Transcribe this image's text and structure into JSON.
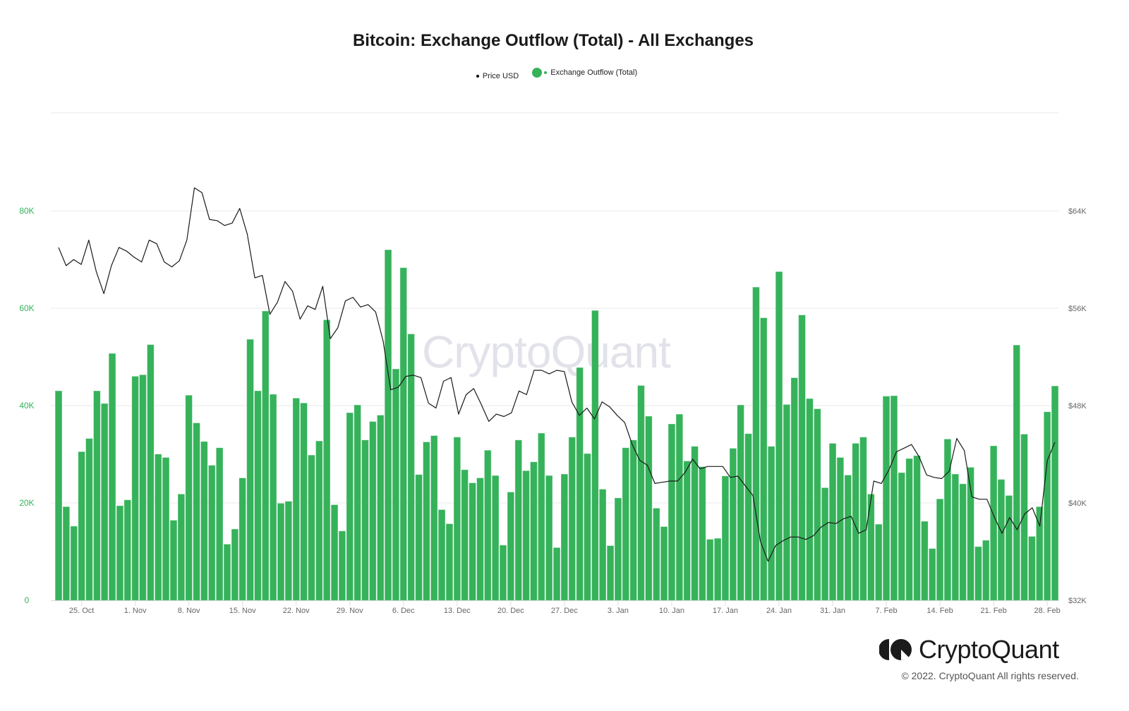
{
  "title": "Bitcoin: Exchange Outflow (Total) - All Exchanges",
  "legend": [
    {
      "label": "Price USD",
      "color": "#000000"
    },
    {
      "label": "Exchange Outflow (Total)",
      "color": "#36b25a"
    }
  ],
  "watermark": "CryptoQuant",
  "brand": {
    "name": "CryptoQuant",
    "copyright": "© 2022. CryptoQuant All rights reserved."
  },
  "colors": {
    "bar": "#36b25a",
    "line": "#1a1a1a",
    "grid": "#e8e8e8",
    "left_axis": "#36b25a",
    "right_axis": "#666666",
    "x_axis": "#666666"
  },
  "chart_data": {
    "type": "bar",
    "title": "Bitcoin: Exchange Outflow (Total) - All Exchanges",
    "xlabel": "",
    "ylabel_left": "Exchange Outflow (Total)",
    "ylabel_right": "Price USD",
    "ylim_left": [
      0,
      80000
    ],
    "ylim_right": [
      32000,
      64000
    ],
    "left_ticks": [
      "0",
      "20K",
      "40K",
      "60K",
      "80K"
    ],
    "right_ticks": [
      "$32K",
      "$40K",
      "$48K",
      "$56K",
      "$64K"
    ],
    "x_tick_labels": [
      "25. Oct",
      "1. Nov",
      "8. Nov",
      "15. Nov",
      "22. Nov",
      "29. Nov",
      "6. Dec",
      "13. Dec",
      "20. Dec",
      "27. Dec",
      "3. Jan",
      "10. Jan",
      "17. Jan",
      "24. Jan",
      "31. Jan",
      "7. Feb",
      "14. Feb",
      "21. Feb",
      "28. Feb"
    ],
    "grid": true,
    "legend_position": "top",
    "start_date": "22. Oct",
    "end_date": "1. Mar",
    "series": [
      {
        "name": "Exchange Outflow (Total)",
        "type": "bar",
        "axis": "left",
        "values": [
          43000,
          19200,
          15200,
          30500,
          33200,
          43000,
          40400,
          50700,
          19400,
          20600,
          46000,
          46300,
          52500,
          30000,
          29300,
          16400,
          21800,
          42100,
          36400,
          32600,
          27700,
          31300,
          11500,
          14600,
          25100,
          53600,
          43000,
          59400,
          42300,
          19900,
          20300,
          41500,
          40500,
          29800,
          32700,
          57600,
          19600,
          14200,
          38500,
          40100,
          32900,
          36700,
          38000,
          72000,
          47500,
          68300,
          54700,
          25800,
          32500,
          33800,
          18600,
          15700,
          33500,
          26800,
          24100,
          25100,
          30800,
          25600,
          11300,
          22200,
          32900,
          26600,
          28400,
          34300,
          25600,
          10800,
          25900,
          33500,
          47800,
          30100,
          59500,
          22800,
          11200,
          21000,
          31300,
          32900,
          44100,
          37800,
          18900,
          15100,
          36200,
          38200,
          28600,
          31600,
          27400,
          12500,
          12700,
          25500,
          31200,
          40100,
          34200,
          64300,
          58000,
          31600,
          67500,
          40200,
          45700,
          58600,
          41400,
          39300,
          23100,
          32200,
          29300,
          25700,
          32200,
          33500,
          21800,
          15600,
          41900,
          42000,
          26200,
          29100,
          29700,
          16200,
          10600,
          20800,
          33100,
          25900,
          23900,
          27300,
          11000,
          12300,
          31700,
          24800,
          21500,
          52400,
          34100,
          13100,
          19200,
          38700,
          44000
        ]
      },
      {
        "name": "Price USD",
        "type": "line",
        "axis": "right",
        "values": [
          61000,
          59500,
          60000,
          59600,
          61600,
          59000,
          57200,
          59500,
          61000,
          60700,
          60200,
          59800,
          61600,
          61300,
          59800,
          59400,
          59900,
          61600,
          65900,
          65500,
          63300,
          63200,
          62800,
          63000,
          64200,
          62100,
          58500,
          58700,
          55500,
          56500,
          58200,
          57400,
          55100,
          56200,
          55900,
          57800,
          53500,
          54400,
          56600,
          56900,
          56100,
          56300,
          55700,
          53300,
          49300,
          49500,
          50400,
          50500,
          50300,
          48200,
          47800,
          50000,
          50300,
          47300,
          48900,
          49400,
          48100,
          46700,
          47300,
          47100,
          47400,
          49200,
          48900,
          50900,
          50900,
          50600,
          50900,
          50800,
          48300,
          47200,
          47800,
          46900,
          48300,
          47900,
          47200,
          46600,
          44800,
          43500,
          43100,
          41600,
          41700,
          41800,
          41800,
          42500,
          43600,
          42800,
          43000,
          43000,
          43000,
          42100,
          42200,
          41400,
          40600,
          36800,
          35200,
          36500,
          36900,
          37200,
          37200,
          37000,
          37300,
          38000,
          38400,
          38300,
          38700,
          38900,
          37500,
          37800,
          41800,
          41600,
          42700,
          44200,
          44500,
          44800,
          43800,
          42300,
          42100,
          42000,
          42600,
          45300,
          44300,
          40500,
          40300,
          40300,
          38800,
          37500,
          38800,
          37800,
          39100,
          39600,
          38100,
          43500,
          45000
        ]
      }
    ]
  }
}
